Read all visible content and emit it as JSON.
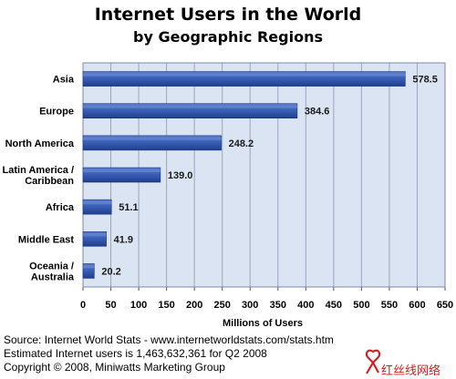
{
  "chart_data": {
    "type": "bar",
    "orientation": "horizontal",
    "title_line1": "Internet Users in the World",
    "title_line2": "by Geographic Regions",
    "categories": [
      [
        "Asia"
      ],
      [
        "Europe"
      ],
      [
        "North America"
      ],
      [
        "Latin America /",
        "Caribbean"
      ],
      [
        "Africa"
      ],
      [
        "Middle East"
      ],
      [
        "Oceania  /",
        "Australia"
      ]
    ],
    "values": [
      578.5,
      384.6,
      248.2,
      139.0,
      51.1,
      41.9,
      20.2
    ],
    "value_labels": [
      "578.5",
      "384.6",
      "248.2",
      "139.0",
      "51.1",
      "41.9",
      "20.2"
    ],
    "xlabel": "Millions of Users",
    "xlim": [
      0,
      650
    ],
    "xticks": [
      0,
      50,
      100,
      150,
      200,
      250,
      300,
      350,
      400,
      450,
      500,
      550,
      600,
      650
    ],
    "grid": true,
    "colors": {
      "plot_background": "#dbe4f3",
      "bar_dark": "#1f3f8f",
      "bar_light": "#6f8fd6",
      "grid": "#9aa6bf"
    }
  },
  "footer": {
    "line1": "Source: Internet World Stats - www.internetworldstats.com/stats.htm",
    "line2": "Estimated Internet users is 1,463,632,361 for Q2 2008",
    "line3": "Copyright © 2008, Miniwatts Marketing Group"
  },
  "watermark": {
    "text": "红丝线网络",
    "icon": "ribbon-logo-icon"
  }
}
